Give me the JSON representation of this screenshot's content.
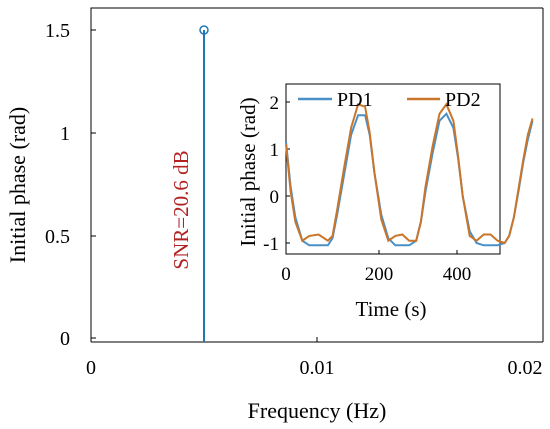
{
  "chart_data": [
    {
      "type": "stem",
      "xlabel": "Frequency (Hz)",
      "ylabel": "Initial phase (rad)",
      "xlim": [
        0,
        0.02
      ],
      "ylim": [
        0,
        1.5
      ],
      "xticks": [
        "0",
        "0.01",
        "0.02"
      ],
      "yticks": [
        "0",
        "0.5",
        "1",
        "1.5"
      ],
      "grid": false,
      "annotation": "SNR=20.6 dB",
      "series": [
        {
          "x": [
            0.005
          ],
          "values": [
            1.5
          ]
        }
      ]
    },
    {
      "type": "line",
      "xlabel": "Time (s)",
      "ylabel": "Initial phase (rad)",
      "xlim": [
        0,
        560
      ],
      "ylim": [
        -1.2,
        2.2
      ],
      "xticks": [
        "0",
        "200",
        "400"
      ],
      "yticks": [
        "-1",
        "0",
        "1",
        "2"
      ],
      "grid": false,
      "legend": "top",
      "series": [
        {
          "name": "PD1",
          "x": [
            0,
            10,
            20,
            35,
            50,
            70,
            90,
            100,
            110,
            125,
            140,
            155,
            170,
            180,
            190,
            205,
            220,
            235,
            250,
            265,
            280,
            290,
            300,
            315,
            330,
            345,
            360,
            370,
            380,
            395,
            410,
            425,
            440,
            455,
            470,
            480,
            490,
            500,
            510,
            520,
            530
          ],
          "values": [
            1.15,
            0.2,
            -0.45,
            -0.95,
            -1.05,
            -1.05,
            -1.05,
            -0.9,
            -0.4,
            0.45,
            1.3,
            1.72,
            1.72,
            1.3,
            0.5,
            -0.4,
            -0.9,
            -1.05,
            -1.05,
            -1.05,
            -0.95,
            -0.55,
            0.1,
            0.9,
            1.6,
            1.75,
            1.45,
            0.8,
            0.0,
            -0.75,
            -1.0,
            -1.05,
            -1.05,
            -1.05,
            -1.0,
            -0.85,
            -0.45,
            0.1,
            0.7,
            1.2,
            1.6
          ]
        },
        {
          "name": "PD2",
          "x": [
            0,
            10,
            20,
            35,
            50,
            70,
            90,
            100,
            110,
            125,
            140,
            155,
            170,
            180,
            190,
            205,
            220,
            235,
            250,
            265,
            280,
            290,
            300,
            315,
            330,
            345,
            360,
            370,
            380,
            395,
            410,
            425,
            440,
            455,
            470,
            480,
            490,
            500,
            510,
            520,
            530
          ],
          "values": [
            1.1,
            0.1,
            -0.55,
            -0.95,
            -0.85,
            -0.82,
            -0.95,
            -0.85,
            -0.3,
            0.6,
            1.45,
            1.95,
            1.9,
            1.35,
            0.5,
            -0.5,
            -0.95,
            -0.85,
            -0.82,
            -0.95,
            -0.95,
            -0.55,
            0.2,
            1.05,
            1.75,
            1.95,
            1.6,
            0.85,
            0.0,
            -0.85,
            -0.95,
            -0.82,
            -0.82,
            -0.95,
            -1.0,
            -0.85,
            -0.45,
            0.15,
            0.75,
            1.3,
            1.65
          ]
        }
      ]
    }
  ],
  "colors": {
    "pd1": "#4a90c8",
    "pd2": "#c9752a",
    "stem": "#1f77b4",
    "annotation": "#b22222",
    "axis": "#000000"
  }
}
